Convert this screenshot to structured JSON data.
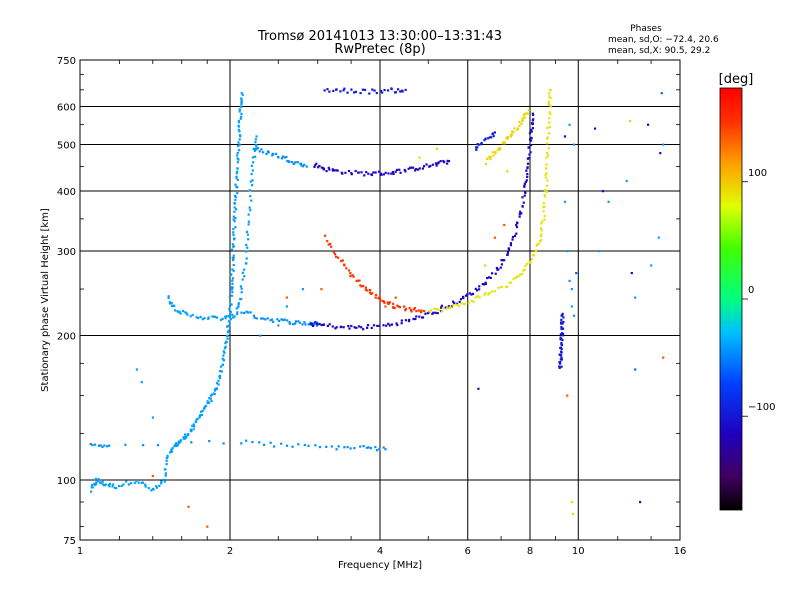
{
  "chart_data": {
    "type": "scatter",
    "title_line1": "Tromsø 20141013 13:30:00–13:31:43",
    "title_line2": "RwPretec (8p)",
    "xlabel": "Frequency [MHz]",
    "ylabel": "Stationary phase Virtual Height [km]",
    "x_scale": "log",
    "y_scale": "log",
    "xlim": [
      1,
      16
    ],
    "ylim": [
      75,
      750
    ],
    "x_ticks": [
      1,
      2,
      4,
      6,
      8,
      10,
      16
    ],
    "x_tick_labels": [
      "1",
      "2",
      "4",
      "6",
      "8",
      "10",
      "16"
    ],
    "y_ticks": [
      75,
      100,
      200,
      300,
      400,
      500,
      600,
      750
    ],
    "y_tick_labels": [
      "75",
      "100",
      "200",
      "300",
      "400",
      "500",
      "600",
      "750"
    ],
    "grid": true,
    "phase_stats": {
      "heading": "Phases",
      "line_o": "mean, sd,O: −72.4, 20.6",
      "line_x": "mean, sd,X:  90.5, 29.2"
    },
    "colorbar": {
      "label": "[deg]",
      "range": [
        -180,
        180
      ],
      "ticks": [
        100,
        0,
        -100
      ],
      "tick_labels": [
        "100",
        "0",
        "−100"
      ]
    },
    "traces": [
      {
        "color_deg": -40,
        "points": [
          [
            1.05,
            95
          ],
          [
            1.08,
            100
          ],
          [
            1.12,
            98
          ],
          [
            1.18,
            97
          ],
          [
            1.3,
            100
          ],
          [
            1.4,
            95
          ],
          [
            1.48,
            100
          ],
          [
            1.5,
            112
          ],
          [
            1.55,
            118
          ],
          [
            1.6,
            121
          ],
          [
            1.65,
            125
          ],
          [
            1.7,
            130
          ],
          [
            1.75,
            138
          ],
          [
            1.8,
            145
          ],
          [
            1.85,
            150
          ],
          [
            1.9,
            160
          ],
          [
            1.93,
            175
          ],
          [
            1.96,
            190
          ],
          [
            1.98,
            205
          ],
          [
            2.0,
            220
          ],
          [
            2.01,
            245
          ],
          [
            2.02,
            270
          ],
          [
            2.03,
            300
          ],
          [
            2.04,
            335
          ],
          [
            2.05,
            370
          ],
          [
            2.06,
            410
          ],
          [
            2.07,
            450
          ],
          [
            2.08,
            500
          ],
          [
            2.09,
            550
          ],
          [
            2.1,
            600
          ],
          [
            2.11,
            640
          ]
        ]
      },
      {
        "color_deg": -40,
        "points": [
          [
            1.5,
            240
          ],
          [
            1.55,
            228
          ],
          [
            1.65,
            220
          ],
          [
            1.8,
            218
          ],
          [
            1.95,
            217
          ],
          [
            2.05,
            220
          ],
          [
            2.1,
            240
          ],
          [
            2.14,
            280
          ],
          [
            2.17,
            330
          ],
          [
            2.2,
            400
          ],
          [
            2.23,
            470
          ],
          [
            2.26,
            520
          ]
        ]
      },
      {
        "color_deg": -45,
        "points": [
          [
            2.1,
            225
          ],
          [
            2.3,
            218
          ],
          [
            2.5,
            215
          ],
          [
            2.7,
            213
          ],
          [
            2.9,
            212
          ],
          [
            3.0,
            211
          ]
        ]
      },
      {
        "color_deg": -45,
        "points": [
          [
            2.25,
            490
          ],
          [
            2.4,
            480
          ],
          [
            2.55,
            470
          ],
          [
            2.7,
            460
          ],
          [
            2.85,
            450
          ]
        ]
      },
      {
        "color_deg": -110,
        "points": [
          [
            2.95,
            455
          ],
          [
            3.1,
            445
          ],
          [
            3.3,
            440
          ],
          [
            3.6,
            436
          ],
          [
            3.9,
            435
          ],
          [
            4.2,
            437
          ],
          [
            4.5,
            442
          ],
          [
            4.8,
            448
          ],
          [
            5.2,
            455
          ],
          [
            5.5,
            462
          ]
        ]
      },
      {
        "color_deg": -110,
        "points": [
          [
            2.9,
            212
          ],
          [
            3.1,
            210
          ],
          [
            3.4,
            208
          ],
          [
            3.7,
            208
          ],
          [
            4.1,
            210
          ],
          [
            4.5,
            214
          ],
          [
            4.9,
            220
          ],
          [
            5.3,
            225
          ]
        ]
      },
      {
        "color_deg": 150,
        "points": [
          [
            3.1,
            320
          ],
          [
            3.3,
            290
          ],
          [
            3.5,
            268
          ],
          [
            3.7,
            253
          ],
          [
            3.9,
            242
          ],
          [
            4.1,
            235
          ],
          [
            4.3,
            230
          ],
          [
            4.6,
            227
          ],
          [
            4.9,
            225
          ]
        ]
      },
      {
        "color_deg": -110,
        "points": [
          [
            5.3,
            228
          ],
          [
            5.7,
            235
          ],
          [
            6.1,
            245
          ],
          [
            6.5,
            258
          ],
          [
            6.9,
            275
          ],
          [
            7.2,
            295
          ],
          [
            7.45,
            325
          ],
          [
            7.65,
            360
          ],
          [
            7.8,
            400
          ],
          [
            7.9,
            440
          ],
          [
            7.98,
            490
          ],
          [
            8.05,
            540
          ],
          [
            8.1,
            580
          ]
        ]
      },
      {
        "color_deg": 90,
        "points": [
          [
            5.0,
            225
          ],
          [
            5.5,
            228
          ],
          [
            6.0,
            235
          ],
          [
            6.6,
            245
          ],
          [
            7.2,
            255
          ],
          [
            7.7,
            270
          ],
          [
            8.1,
            290
          ],
          [
            8.35,
            315
          ],
          [
            8.5,
            350
          ],
          [
            8.6,
            400
          ],
          [
            8.65,
            450
          ],
          [
            8.7,
            520
          ],
          [
            8.75,
            600
          ],
          [
            8.78,
            650
          ]
        ]
      },
      {
        "color_deg": 95,
        "points": [
          [
            6.5,
            460
          ],
          [
            6.8,
            480
          ],
          [
            7.1,
            505
          ],
          [
            7.4,
            530
          ],
          [
            7.7,
            560
          ],
          [
            7.95,
            590
          ]
        ]
      },
      {
        "color_deg": -95,
        "points": [
          [
            6.2,
            490
          ],
          [
            6.5,
            510
          ],
          [
            6.8,
            530
          ]
        ]
      },
      {
        "color_deg": -100,
        "points": [
          [
            3.1,
            650
          ],
          [
            3.4,
            648
          ],
          [
            3.8,
            645
          ],
          [
            4.2,
            648
          ],
          [
            4.5,
            650
          ]
        ]
      },
      {
        "color_deg": -45,
        "points": [
          [
            1.05,
            118
          ],
          [
            1.15,
            118
          ],
          [
            2.1,
            120
          ],
          [
            2.6,
            118
          ],
          [
            3.2,
            117
          ],
          [
            3.7,
            117
          ],
          [
            4.1,
            116
          ]
        ]
      },
      {
        "color_deg": -100,
        "points": [
          [
            9.2,
            170
          ],
          [
            9.22,
            180
          ],
          [
            9.24,
            190
          ],
          [
            9.26,
            200
          ],
          [
            9.28,
            210
          ],
          [
            9.3,
            222
          ]
        ]
      }
    ],
    "scatter": [
      {
        "color_deg": -40,
        "points": [
          [
            1.3,
            170
          ],
          [
            1.33,
            160
          ],
          [
            1.4,
            135
          ],
          [
            2.3,
            200
          ],
          [
            2.5,
            210
          ],
          [
            2.6,
            230
          ],
          [
            2.8,
            250
          ],
          [
            9.5,
            300
          ],
          [
            9.6,
            260
          ],
          [
            9.7,
            250
          ],
          [
            9.4,
            380
          ],
          [
            9.6,
            550
          ],
          [
            9.8,
            500
          ],
          [
            13,
            240
          ],
          [
            14,
            280
          ],
          [
            14.5,
            320
          ],
          [
            14.8,
            500
          ],
          [
            12.5,
            420
          ],
          [
            11.5,
            380
          ],
          [
            11,
            300
          ],
          [
            9.8,
            220
          ],
          [
            9.7,
            230
          ]
        ]
      },
      {
        "color_deg": -110,
        "points": [
          [
            6.3,
            155
          ],
          [
            9.4,
            520
          ],
          [
            14.6,
            480
          ],
          [
            13.8,
            550
          ],
          [
            10.8,
            540
          ],
          [
            11.2,
            400
          ],
          [
            12.8,
            270
          ],
          [
            13.3,
            90
          ]
        ]
      },
      {
        "color_deg": 140,
        "points": [
          [
            1.4,
            102
          ],
          [
            1.65,
            88
          ],
          [
            1.8,
            80
          ],
          [
            2.6,
            240
          ],
          [
            3.05,
            250
          ],
          [
            4.1,
            230
          ],
          [
            4.3,
            240
          ],
          [
            6.8,
            320
          ],
          [
            7.1,
            340
          ],
          [
            9.5,
            150
          ],
          [
            14.8,
            180
          ]
        ]
      },
      {
        "color_deg": 95,
        "points": [
          [
            9.7,
            90
          ],
          [
            9.75,
            85
          ],
          [
            12.7,
            560
          ],
          [
            6.5,
            280
          ],
          [
            7.2,
            440
          ],
          [
            4.8,
            470
          ],
          [
            5.2,
            490
          ]
        ]
      },
      {
        "color_deg": -60,
        "points": [
          [
            9.9,
            270
          ],
          [
            14.7,
            640
          ],
          [
            13.0,
            170
          ]
        ]
      }
    ]
  }
}
